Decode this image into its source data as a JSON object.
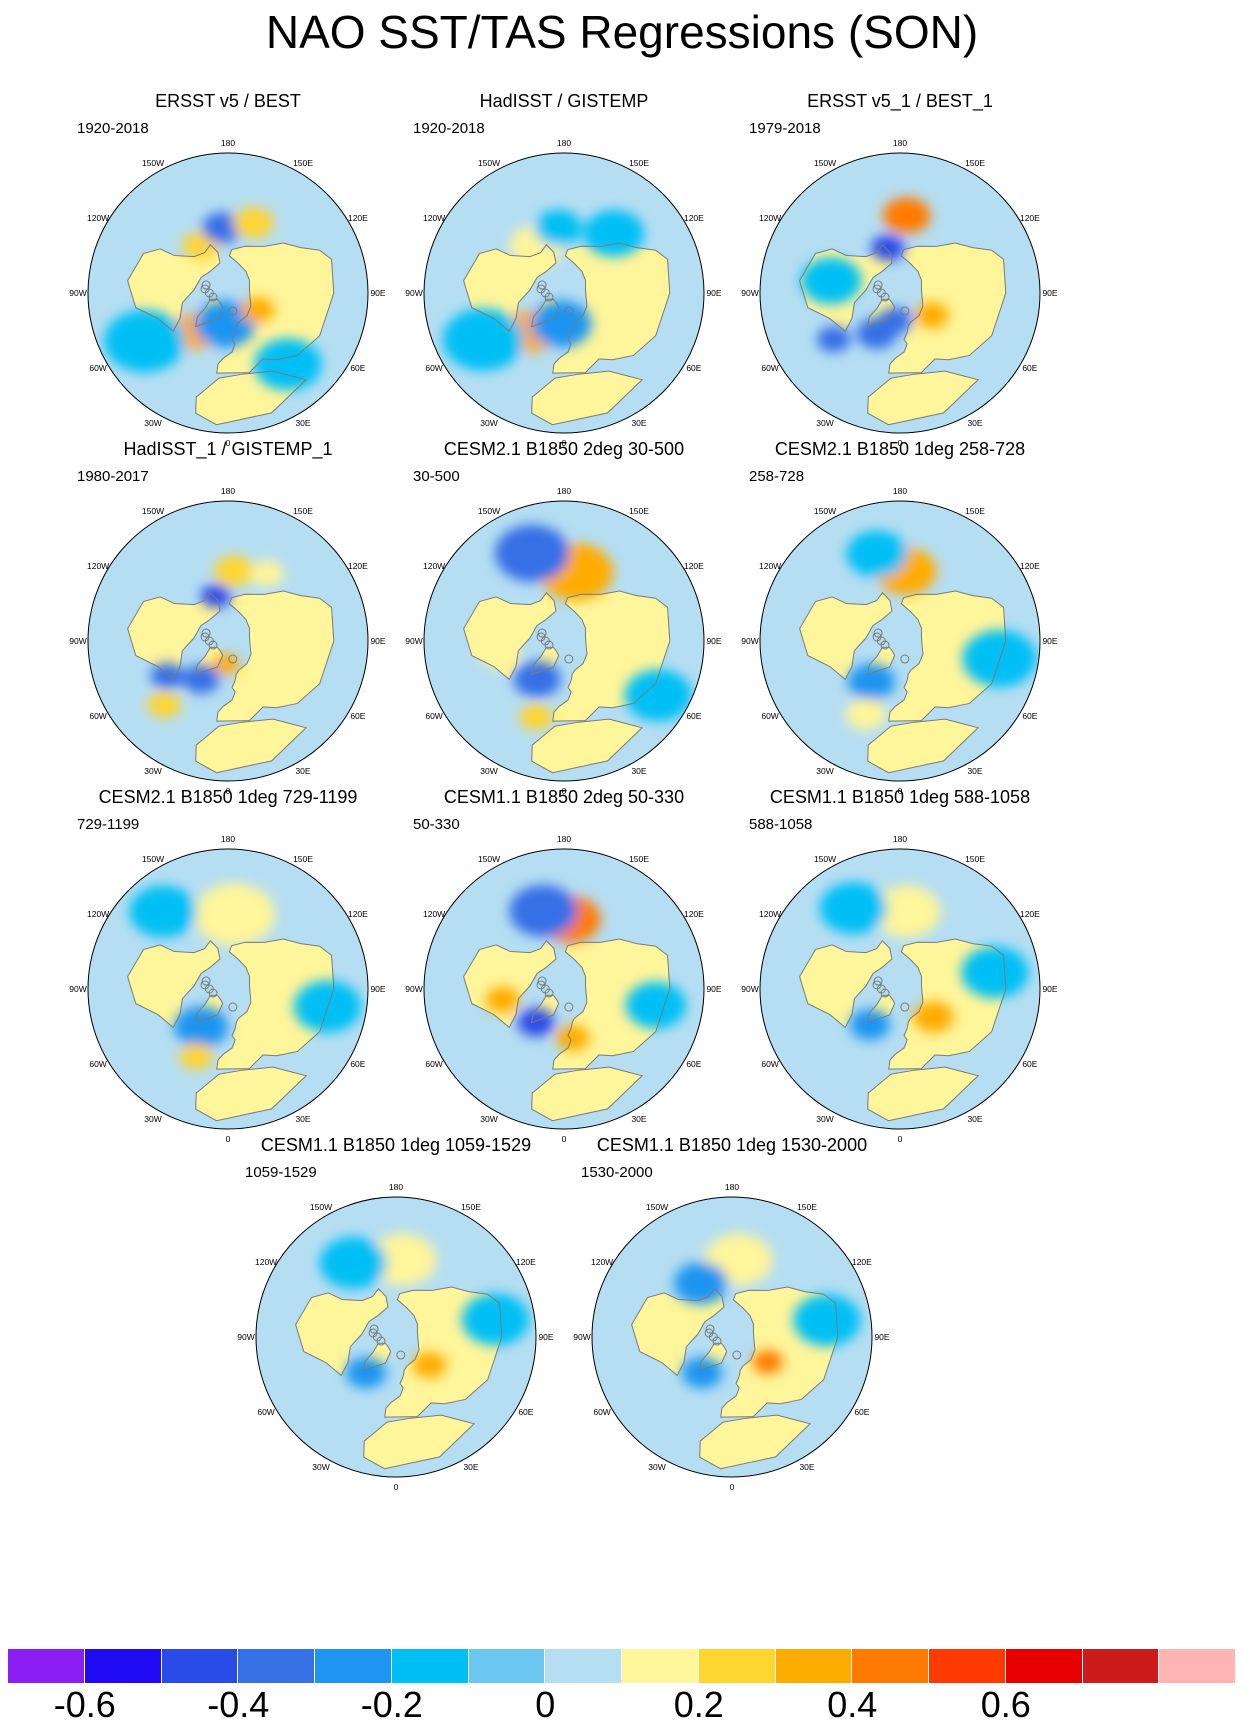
{
  "title": "NAO SST/TAS Regressions (SON)",
  "colors": {
    "ocean_neutral": "#b5def2",
    "land_positive": "#fff59a",
    "coast": "#7a7a7a",
    "sea_ice": "#ffffff",
    "scale": [
      "#8a1ef5",
      "#1f0af2",
      "#2a4be8",
      "#3670e6",
      "#1e95f0",
      "#00bff5",
      "#6cc7f0",
      "#b5def2",
      "#fff59a",
      "#ffd530",
      "#ffac00",
      "#ff7a00",
      "#ff3a00",
      "#e60000",
      "#cd1a1a",
      "#ffb4b4"
    ]
  },
  "longitude_labels": [
    "180",
    "150E",
    "120E",
    "90E",
    "60E",
    "30E",
    "0",
    "30W",
    "60W",
    "90W",
    "120W",
    "150W"
  ],
  "panels": [
    {
      "title": "ERSST v5 / BEST",
      "years": "1920-2018",
      "features": [
        {
          "lat": 55,
          "lon": -150,
          "v": 0.25,
          "s": 0.55
        },
        {
          "lat": 48,
          "lon": -175,
          "v": -0.3,
          "s": 0.6
        },
        {
          "lat": 42,
          "lon": 160,
          "v": 0.25,
          "s": 0.6
        },
        {
          "lat": 58,
          "lon": -40,
          "v": 0.3,
          "s": 0.7
        },
        {
          "lat": 70,
          "lon": -5,
          "v": -0.25,
          "s": 0.9
        },
        {
          "lat": 68,
          "lon": 60,
          "v": 0.35,
          "s": 0.5
        },
        {
          "lat": 28,
          "lon": -60,
          "v": -0.1,
          "s": 1.2
        },
        {
          "lat": 30,
          "lon": 40,
          "v": -0.1,
          "s": 1.0
        }
      ]
    },
    {
      "title": "HadISST / GISTEMP",
      "years": "1920-2018",
      "features": [
        {
          "lat": 55,
          "lon": -150,
          "v": 0.15,
          "s": 0.8
        },
        {
          "lat": 48,
          "lon": -175,
          "v": -0.15,
          "s": 0.7
        },
        {
          "lat": 58,
          "lon": -40,
          "v": 0.3,
          "s": 0.8
        },
        {
          "lat": 70,
          "lon": -5,
          "v": -0.25,
          "s": 0.9
        },
        {
          "lat": 30,
          "lon": -60,
          "v": -0.15,
          "s": 1.2
        },
        {
          "lat": 40,
          "lon": 140,
          "v": -0.1,
          "s": 0.9
        }
      ]
    },
    {
      "title": "ERSST v5_1 / BEST_1",
      "years": "1979-2018",
      "features": [
        {
          "lat": 40,
          "lon": 175,
          "v": 0.4,
          "s": 0.7
        },
        {
          "lat": 60,
          "lon": -165,
          "v": -0.45,
          "s": 0.5
        },
        {
          "lat": 60,
          "lon": -30,
          "v": -0.3,
          "s": 0.6
        },
        {
          "lat": 72,
          "lon": -10,
          "v": -0.35,
          "s": 0.5
        },
        {
          "lat": 65,
          "lon": 55,
          "v": 0.3,
          "s": 0.5
        },
        {
          "lat": 38,
          "lon": -55,
          "v": -0.3,
          "s": 0.5
        },
        {
          "lat": 45,
          "lon": -100,
          "v": -0.1,
          "s": 0.9
        }
      ]
    },
    {
      "title": "HadISST_1 / GISTEMP_1",
      "years": "1980-2017",
      "features": [
        {
          "lat": 45,
          "lon": 175,
          "v": 0.25,
          "s": 0.6
        },
        {
          "lat": 60,
          "lon": -165,
          "v": -0.45,
          "s": 0.45
        },
        {
          "lat": 75,
          "lon": -5,
          "v": 0.3,
          "s": 0.4
        },
        {
          "lat": 60,
          "lon": -35,
          "v": -0.3,
          "s": 0.55
        },
        {
          "lat": 45,
          "lon": -60,
          "v": -0.35,
          "s": 0.5
        },
        {
          "lat": 32,
          "lon": -45,
          "v": 0.25,
          "s": 0.5
        },
        {
          "lat": 40,
          "lon": 150,
          "v": 0.2,
          "s": 0.5
        }
      ]
    },
    {
      "title": "CESM2.1 B1850 2deg 30-500",
      "years": "30-500",
      "features": [
        {
          "lat": 45,
          "lon": 170,
          "v": 0.35,
          "s": 1.1
        },
        {
          "lat": 30,
          "lon": -160,
          "v": -0.3,
          "s": 1.1
        },
        {
          "lat": 60,
          "lon": -35,
          "v": -0.35,
          "s": 0.7
        },
        {
          "lat": 48,
          "lon": -80,
          "v": 0.15,
          "s": 0.6
        },
        {
          "lat": 38,
          "lon": -20,
          "v": 0.25,
          "s": 0.5
        },
        {
          "lat": 20,
          "lon": 60,
          "v": -0.12,
          "s": 1.0
        }
      ]
    },
    {
      "title": "CESM2.1 B1850 1deg 258-728",
      "years": "258-728",
      "features": [
        {
          "lat": 45,
          "lon": 175,
          "v": 0.3,
          "s": 0.9
        },
        {
          "lat": 32,
          "lon": -165,
          "v": -0.15,
          "s": 0.9
        },
        {
          "lat": 58,
          "lon": -35,
          "v": -0.2,
          "s": 0.7
        },
        {
          "lat": 38,
          "lon": -25,
          "v": 0.12,
          "s": 0.6
        },
        {
          "lat": 25,
          "lon": 80,
          "v": -0.1,
          "s": 1.1
        }
      ]
    },
    {
      "title": "CESM2.1 B1850 1deg 729-1199",
      "years": "729-1199",
      "features": [
        {
          "lat": 42,
          "lon": 175,
          "v": 0.12,
          "s": 1.2
        },
        {
          "lat": 60,
          "lon": -35,
          "v": -0.2,
          "s": 0.8
        },
        {
          "lat": 42,
          "lon": -25,
          "v": 0.28,
          "s": 0.5
        },
        {
          "lat": 25,
          "lon": -140,
          "v": -0.1,
          "s": 1.0
        },
        {
          "lat": 25,
          "lon": 80,
          "v": -0.1,
          "s": 1.0
        }
      ]
    },
    {
      "title": "CESM1.1 B1850 2deg 50-330",
      "years": "50-330",
      "features": [
        {
          "lat": 45,
          "lon": 175,
          "v": 0.4,
          "s": 0.9
        },
        {
          "lat": 38,
          "lon": -165,
          "v": -0.3,
          "s": 1.0
        },
        {
          "lat": 62,
          "lon": -40,
          "v": -0.4,
          "s": 0.55
        },
        {
          "lat": 50,
          "lon": -80,
          "v": 0.3,
          "s": 0.5
        },
        {
          "lat": 58,
          "lon": 10,
          "v": 0.3,
          "s": 0.5
        },
        {
          "lat": 30,
          "lon": 80,
          "v": -0.15,
          "s": 0.9
        }
      ]
    },
    {
      "title": "CESM1.1 B1850 1deg 588-1058",
      "years": "588-1058",
      "features": [
        {
          "lat": 40,
          "lon": 175,
          "v": 0.15,
          "s": 1.0
        },
        {
          "lat": 60,
          "lon": -40,
          "v": -0.25,
          "s": 0.6
        },
        {
          "lat": 62,
          "lon": 50,
          "v": 0.3,
          "s": 0.6
        },
        {
          "lat": 30,
          "lon": -150,
          "v": -0.1,
          "s": 1.0
        },
        {
          "lat": 28,
          "lon": 100,
          "v": -0.12,
          "s": 1.0
        }
      ]
    },
    {
      "title": "CESM1.1 B1850 1deg 1059-1529",
      "years": "1059-1529",
      "features": [
        {
          "lat": 40,
          "lon": 175,
          "v": 0.12,
          "s": 1.0
        },
        {
          "lat": 60,
          "lon": -40,
          "v": -0.28,
          "s": 0.6
        },
        {
          "lat": 62,
          "lon": 50,
          "v": 0.35,
          "s": 0.5
        },
        {
          "lat": 35,
          "lon": -150,
          "v": -0.12,
          "s": 1.0
        },
        {
          "lat": 25,
          "lon": 100,
          "v": -0.12,
          "s": 1.0
        }
      ]
    },
    {
      "title": "CESM1.1 B1850 1deg 1530-2000",
      "years": "1530-2000",
      "features": [
        {
          "lat": 40,
          "lon": 175,
          "v": 0.12,
          "s": 1.0
        },
        {
          "lat": 50,
          "lon": -150,
          "v": -0.2,
          "s": 0.8
        },
        {
          "lat": 60,
          "lon": -40,
          "v": -0.22,
          "s": 0.6
        },
        {
          "lat": 62,
          "lon": 55,
          "v": 0.45,
          "s": 0.45
        },
        {
          "lat": 28,
          "lon": 100,
          "v": -0.12,
          "s": 1.0
        }
      ]
    }
  ],
  "colorbar": {
    "labels": [
      "-0.6",
      "-0.4",
      "-0.2",
      "0",
      "0.2",
      "0.4",
      "0.6"
    ]
  }
}
